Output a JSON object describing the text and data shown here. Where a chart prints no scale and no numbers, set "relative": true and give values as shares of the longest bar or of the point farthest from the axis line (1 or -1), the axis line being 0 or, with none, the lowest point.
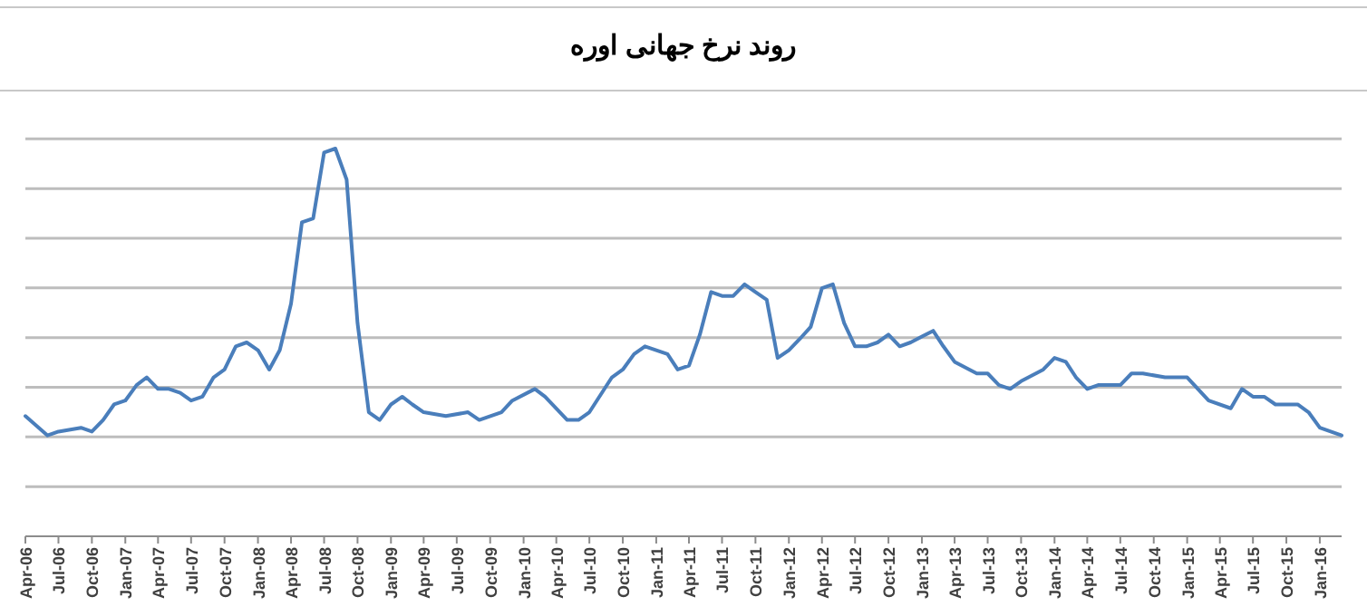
{
  "chart_data": {
    "type": "line",
    "title": "روند نرخ جهانی اوره",
    "relative": true,
    "grid": "y",
    "x": [
      "2006-04",
      "2006-06",
      "2006-07",
      "2006-09",
      "2006-10",
      "2006-11",
      "2006-12",
      "2007-01",
      "2007-02",
      "2007-03",
      "2007-04",
      "2007-05",
      "2007-06",
      "2007-07",
      "2007-08",
      "2007-09",
      "2007-10",
      "2007-11",
      "2007-12",
      "2008-01",
      "2008-02",
      "2008-03",
      "2008-04",
      "2008-05",
      "2008-06",
      "2008-07",
      "2008-08",
      "2008-09",
      "2008-10",
      "2008-11",
      "2008-12",
      "2009-01",
      "2009-02",
      "2009-03",
      "2009-04",
      "2009-06",
      "2009-08",
      "2009-09",
      "2009-11",
      "2009-12",
      "2010-02",
      "2010-03",
      "2010-05",
      "2010-06",
      "2010-07",
      "2010-09",
      "2010-10",
      "2010-11",
      "2010-12",
      "2011-02",
      "2011-03",
      "2011-04",
      "2011-05",
      "2011-06",
      "2011-07",
      "2011-08",
      "2011-09",
      "2011-10",
      "2011-11",
      "2011-12",
      "2012-01",
      "2012-02",
      "2012-03",
      "2012-04",
      "2012-05",
      "2012-06",
      "2012-07",
      "2012-08",
      "2012-09",
      "2012-10",
      "2012-11",
      "2012-12",
      "2013-02",
      "2013-03",
      "2013-04",
      "2013-06",
      "2013-07",
      "2013-08",
      "2013-09",
      "2013-10",
      "2013-12",
      "2014-01",
      "2014-02",
      "2014-03",
      "2014-04",
      "2014-05",
      "2014-07",
      "2014-08",
      "2014-09",
      "2014-11",
      "2014-12",
      "2015-01",
      "2015-03",
      "2015-05",
      "2015-06",
      "2015-07",
      "2015-08",
      "2015-09",
      "2015-11",
      "2015-12",
      "2016-01",
      "2016-03"
    ],
    "series": [
      {
        "color": "#4a7ebb",
        "values": [
          0.31,
          0.26,
          0.27,
          0.28,
          0.27,
          0.3,
          0.34,
          0.35,
          0.39,
          0.41,
          0.38,
          0.38,
          0.37,
          0.35,
          0.36,
          0.41,
          0.43,
          0.49,
          0.5,
          0.48,
          0.43,
          0.48,
          0.6,
          0.81,
          0.82,
          0.99,
          1,
          0.92,
          0.55,
          0.32,
          0.3,
          0.34,
          0.36,
          0.34,
          0.32,
          0.31,
          0.32,
          0.3,
          0.32,
          0.35,
          0.38,
          0.36,
          0.3,
          0.3,
          0.32,
          0.41,
          0.43,
          0.47,
          0.49,
          0.47,
          0.43,
          0.44,
          0.52,
          0.63,
          0.62,
          0.62,
          0.65,
          0.63,
          0.61,
          0.46,
          0.48,
          0.51,
          0.54,
          0.64,
          0.65,
          0.55,
          0.49,
          0.49,
          0.5,
          0.52,
          0.49,
          0.5,
          0.53,
          0.49,
          0.45,
          0.42,
          0.42,
          0.39,
          0.38,
          0.4,
          0.43,
          0.46,
          0.45,
          0.41,
          0.38,
          0.39,
          0.39,
          0.42,
          0.42,
          0.41,
          0.41,
          0.41,
          0.35,
          0.33,
          0.38,
          0.36,
          0.36,
          0.34,
          0.34,
          0.32,
          0.28,
          0.26
        ]
      }
    ],
    "xlim": [
      "2006-04",
      "2016-03"
    ],
    "xticks": [
      {
        "value": "2006-04",
        "label": "Apr-06"
      },
      {
        "value": "2006-07",
        "label": "Jul-06"
      },
      {
        "value": "2006-10",
        "label": "Oct-06"
      },
      {
        "value": "2007-01",
        "label": "Jan-07"
      },
      {
        "value": "2007-04",
        "label": "Apr-07"
      },
      {
        "value": "2007-07",
        "label": "Jul-07"
      },
      {
        "value": "2007-10",
        "label": "Oct-07"
      },
      {
        "value": "2008-01",
        "label": "Jan-08"
      },
      {
        "value": "2008-04",
        "label": "Apr-08"
      },
      {
        "value": "2008-07",
        "label": "Jul-08"
      },
      {
        "value": "2008-10",
        "label": "Oct-08"
      },
      {
        "value": "2009-01",
        "label": "Jan-09"
      },
      {
        "value": "2009-04",
        "label": "Apr-09"
      },
      {
        "value": "2009-07",
        "label": "Jul-09"
      },
      {
        "value": "2009-10",
        "label": "Oct-09"
      },
      {
        "value": "2010-01",
        "label": "Jan-10"
      },
      {
        "value": "2010-04",
        "label": "Apr-10"
      },
      {
        "value": "2010-07",
        "label": "Jul-10"
      },
      {
        "value": "2010-10",
        "label": "Oct-10"
      },
      {
        "value": "2011-01",
        "label": "Jan-11"
      },
      {
        "value": "2011-04",
        "label": "Apr-11"
      },
      {
        "value": "2011-07",
        "label": "Jul-11"
      },
      {
        "value": "2011-10",
        "label": "Oct-11"
      },
      {
        "value": "2012-01",
        "label": "Jan-12"
      },
      {
        "value": "2012-04",
        "label": "Apr-12"
      },
      {
        "value": "2012-07",
        "label": "Jul-12"
      },
      {
        "value": "2012-10",
        "label": "Oct-12"
      },
      {
        "value": "2013-01",
        "label": "Jan-13"
      },
      {
        "value": "2013-04",
        "label": "Apr-13"
      },
      {
        "value": "2013-07",
        "label": "Jul-13"
      },
      {
        "value": "2013-10",
        "label": "Oct-13"
      },
      {
        "value": "2014-01",
        "label": "Jan-14"
      },
      {
        "value": "2014-04",
        "label": "Apr-14"
      },
      {
        "value": "2014-07",
        "label": "Jul-14"
      },
      {
        "value": "2014-10",
        "label": "Oct-14"
      },
      {
        "value": "2015-01",
        "label": "Jan-15"
      },
      {
        "value": "2015-04",
        "label": "Apr-15"
      },
      {
        "value": "2015-07",
        "label": "Jul-15"
      },
      {
        "value": "2015-10",
        "label": "Oct-15"
      },
      {
        "value": "2016-01",
        "label": "Jan-16"
      }
    ]
  }
}
